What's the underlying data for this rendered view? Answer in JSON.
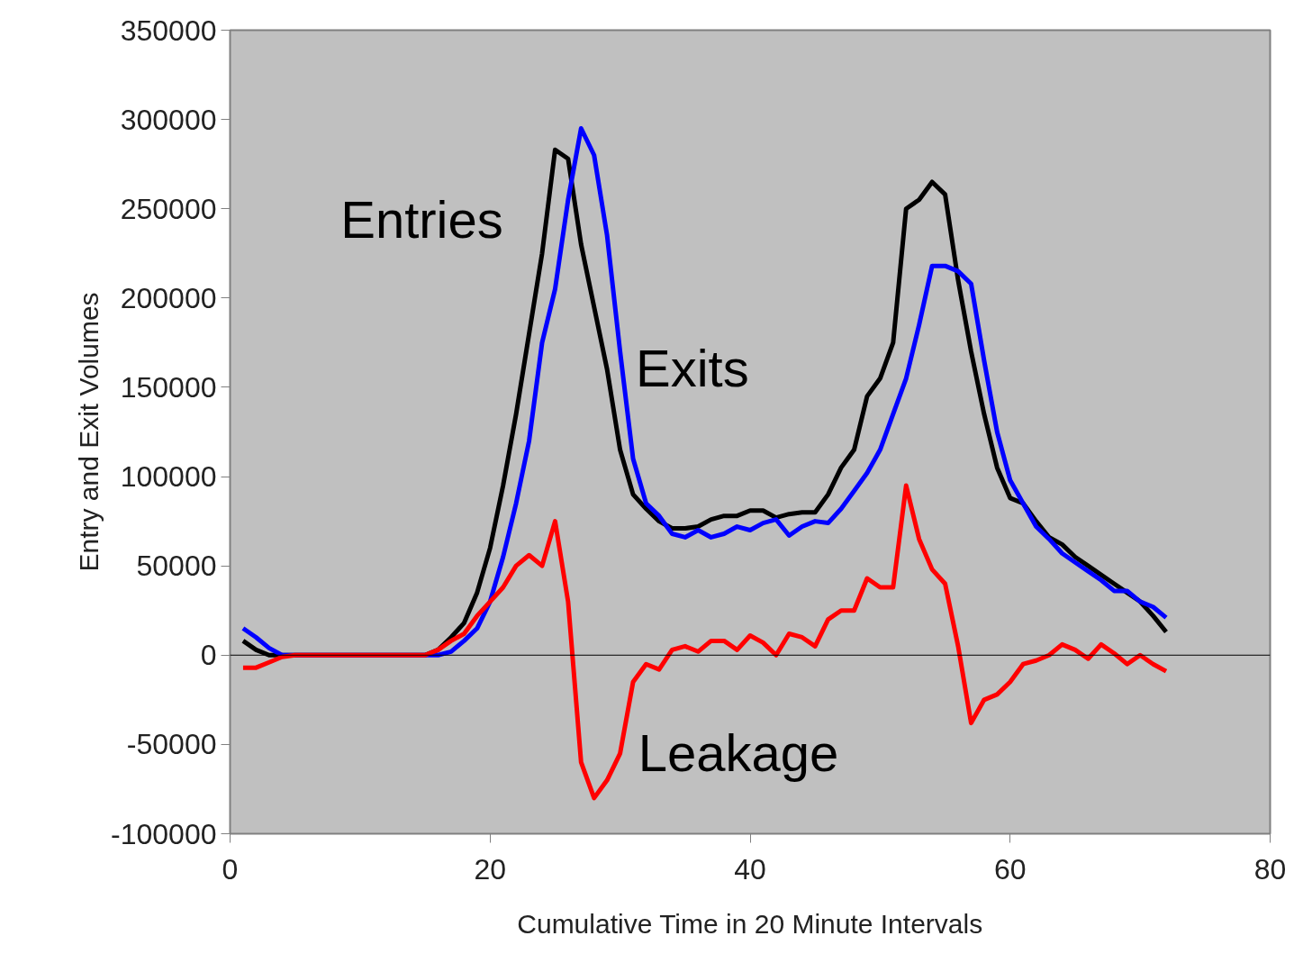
{
  "chart_data": {
    "type": "line",
    "xlabel": "Cumulative Time in 20 Minute Intervals",
    "ylabel": "Entry and Exit Volumes",
    "x": [
      1,
      2,
      3,
      4,
      5,
      6,
      7,
      8,
      9,
      10,
      11,
      12,
      13,
      14,
      15,
      16,
      17,
      18,
      19,
      20,
      21,
      22,
      23,
      24,
      25,
      26,
      27,
      28,
      29,
      30,
      31,
      32,
      33,
      34,
      35,
      36,
      37,
      38,
      39,
      40,
      41,
      42,
      43,
      44,
      45,
      46,
      47,
      48,
      49,
      50,
      51,
      52,
      53,
      54,
      55,
      56,
      57,
      58,
      59,
      60,
      61,
      62,
      63,
      64,
      65,
      66,
      67,
      68,
      69,
      70,
      71,
      72
    ],
    "series": [
      {
        "name": "Entries",
        "color": "#000000",
        "values": [
          8000,
          3000,
          0,
          0,
          0,
          0,
          0,
          0,
          0,
          0,
          0,
          0,
          0,
          0,
          0,
          3000,
          10000,
          18000,
          35000,
          60000,
          95000,
          135000,
          180000,
          225000,
          283000,
          278000,
          230000,
          195000,
          160000,
          115000,
          90000,
          82000,
          75000,
          71000,
          71000,
          72000,
          76000,
          78000,
          78000,
          81000,
          81000,
          77000,
          79000,
          80000,
          80000,
          90000,
          105000,
          115000,
          145000,
          155000,
          175000,
          250000,
          255000,
          265000,
          258000,
          210000,
          170000,
          135000,
          105000,
          88000,
          85000,
          75000,
          66000,
          62000,
          55000,
          50000,
          45000,
          40000,
          35000,
          30000,
          22000,
          13000
        ]
      },
      {
        "name": "Exits",
        "color": "#0000ff",
        "values": [
          15000,
          10000,
          4000,
          0,
          0,
          0,
          0,
          0,
          0,
          0,
          0,
          0,
          0,
          0,
          0,
          0,
          2000,
          8000,
          15000,
          30000,
          55000,
          85000,
          120000,
          175000,
          205000,
          255000,
          295000,
          280000,
          235000,
          170000,
          110000,
          85000,
          78000,
          68000,
          66000,
          70000,
          66000,
          68000,
          72000,
          70000,
          74000,
          76000,
          67000,
          72000,
          75000,
          74000,
          82000,
          92000,
          102000,
          115000,
          135000,
          155000,
          185000,
          218000,
          218000,
          215000,
          208000,
          165000,
          125000,
          98000,
          85000,
          72000,
          65000,
          57000,
          52000,
          47000,
          42000,
          36000,
          36000,
          30000,
          27000,
          21000
        ]
      },
      {
        "name": "Leakage",
        "color": "#ff0000",
        "values": [
          -7000,
          -7000,
          -4000,
          -1000,
          0,
          0,
          0,
          0,
          0,
          0,
          0,
          0,
          0,
          0,
          0,
          3000,
          8000,
          12000,
          22000,
          30000,
          38000,
          50000,
          56000,
          50000,
          75000,
          30000,
          -60000,
          -80000,
          -70000,
          -55000,
          -15000,
          -5000,
          -8000,
          3000,
          5000,
          2000,
          8000,
          8000,
          3000,
          11000,
          7000,
          0,
          12000,
          10000,
          5000,
          20000,
          25000,
          25000,
          43000,
          38000,
          38000,
          95000,
          65000,
          48000,
          40000,
          5000,
          -38000,
          -25000,
          -22000,
          -15000,
          -5000,
          -3000,
          0,
          6000,
          3000,
          -2000,
          6000,
          1000,
          -5000,
          0,
          -5000,
          -9000
        ]
      }
    ],
    "xlim": [
      0,
      80
    ],
    "xticks": [
      0,
      20,
      40,
      60,
      80
    ],
    "ylim": [
      -100000,
      350000
    ],
    "yticks": [
      -100000,
      -50000,
      0,
      50000,
      100000,
      150000,
      200000,
      250000,
      300000,
      350000
    ],
    "ref_lines": [
      {
        "axis": "y",
        "value": 0,
        "color": "#000000"
      }
    ],
    "grid": false,
    "legend": false,
    "marker": "none",
    "line_style": "solid"
  }
}
